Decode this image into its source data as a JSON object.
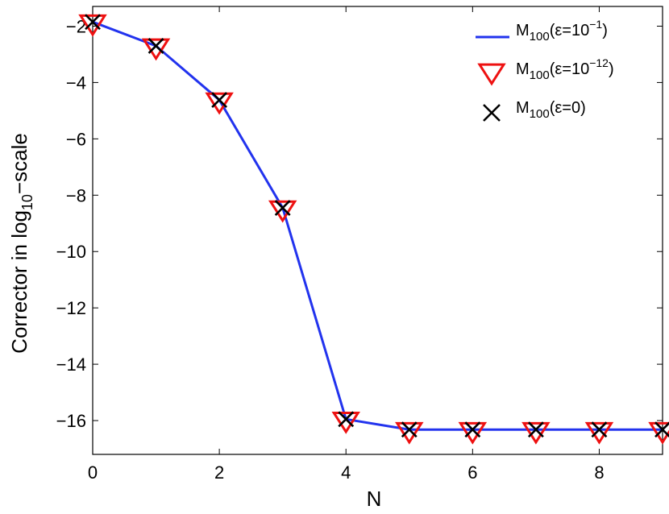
{
  "chart_data": {
    "type": "line",
    "xlabel": "N",
    "ylabel": {
      "prefix": "Corrector in log",
      "subscript": "10",
      "suffix": "−scale"
    },
    "xlim": [
      0,
      9
    ],
    "ylim": [
      -17.2,
      -1.3
    ],
    "x_ticks": [
      0,
      2,
      4,
      6,
      8
    ],
    "x_tick_labels": [
      "0",
      "2",
      "4",
      "6",
      "8"
    ],
    "y_ticks": [
      -2,
      -4,
      -6,
      -8,
      -10,
      -12,
      -14,
      -16
    ],
    "y_tick_labels": [
      "−2",
      "−4",
      "−6",
      "−8",
      "−10",
      "−12",
      "−14",
      "−16"
    ],
    "grid": false,
    "legend_position": "top-right",
    "x": [
      0,
      1,
      2,
      3,
      4,
      5,
      6,
      7,
      8,
      9
    ],
    "series": [
      {
        "marker": "line",
        "color": "#2233ee",
        "legend": {
          "base": "M",
          "sub": "100",
          "open": "(ε=10",
          "sup": "−1",
          "close": ")"
        },
        "values": [
          -1.85,
          -2.7,
          -4.62,
          -8.45,
          -15.95,
          -16.32,
          -16.32,
          -16.32,
          -16.32,
          -16.32
        ]
      },
      {
        "marker": "triangle-down",
        "color": "#ee1111",
        "legend": {
          "base": "M",
          "sub": "100",
          "open": "(ε=10",
          "sup": "−12",
          "close": ")"
        },
        "values": [
          -1.85,
          -2.7,
          -4.62,
          -8.45,
          -15.95,
          -16.32,
          -16.32,
          -16.32,
          -16.32,
          -16.32
        ]
      },
      {
        "marker": "x",
        "color": "#000000",
        "legend": {
          "base": "M",
          "sub": "100",
          "open": "(ε=0)",
          "sup": "",
          "close": ""
        },
        "values": [
          -1.85,
          -2.7,
          -4.62,
          -8.45,
          -15.95,
          -16.32,
          -16.32,
          -16.32,
          -16.32,
          -16.32
        ]
      }
    ]
  }
}
